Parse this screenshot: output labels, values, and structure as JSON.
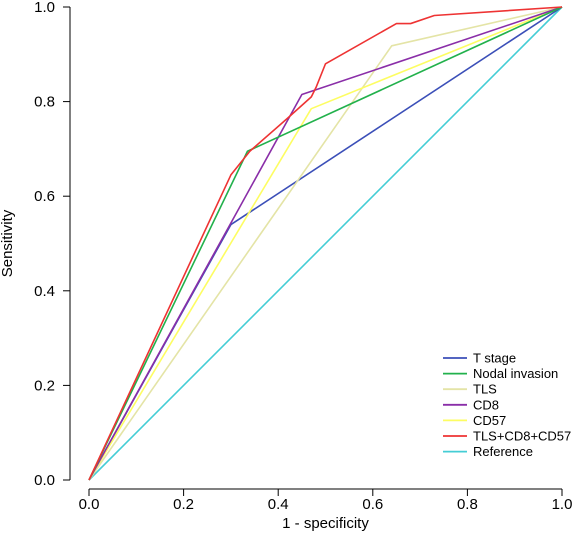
{
  "chart_data": {
    "type": "line",
    "title": "",
    "xlabel": "1 - specificity",
    "ylabel": "Sensitivity",
    "xlim": [
      0,
      1
    ],
    "ylim": [
      0,
      1
    ],
    "xticks": [
      "0.0",
      "0.2",
      "0.4",
      "0.6",
      "0.8",
      "1.0"
    ],
    "yticks": [
      "0.0",
      "0.2",
      "0.4",
      "0.6",
      "0.8",
      "1.0"
    ],
    "grid": false,
    "legend_position": "bottom-right",
    "series": [
      {
        "name": "T stage",
        "color": "#3b4fb8",
        "x": [
          0,
          0.3,
          1
        ],
        "y": [
          0,
          0.54,
          1
        ]
      },
      {
        "name": "Nodal invasion",
        "color": "#22b14c",
        "x": [
          0,
          0.335,
          1
        ],
        "y": [
          0,
          0.695,
          1
        ]
      },
      {
        "name": "TLS",
        "color": "#e4e4a6",
        "x": [
          0,
          0.64,
          1
        ],
        "y": [
          0,
          0.918,
          1
        ]
      },
      {
        "name": "CD8",
        "color": "#8a2ea8",
        "x": [
          0,
          0.45,
          1
        ],
        "y": [
          0,
          0.815,
          1
        ]
      },
      {
        "name": "CD57",
        "color": "#fdfd62",
        "x": [
          0,
          0.47,
          1
        ],
        "y": [
          0,
          0.785,
          1
        ]
      },
      {
        "name": "TLS+CD8+CD57",
        "color": "#ee3333",
        "x": [
          0,
          0.3,
          0.34,
          0.42,
          0.47,
          0.48,
          0.5,
          0.65,
          0.68,
          0.73,
          1
        ],
        "y": [
          0,
          0.645,
          0.695,
          0.765,
          0.81,
          0.83,
          0.88,
          0.965,
          0.965,
          0.982,
          1
        ]
      },
      {
        "name": "Reference",
        "color": "#44cdd5",
        "x": [
          0,
          1
        ],
        "y": [
          0,
          1
        ]
      }
    ]
  }
}
